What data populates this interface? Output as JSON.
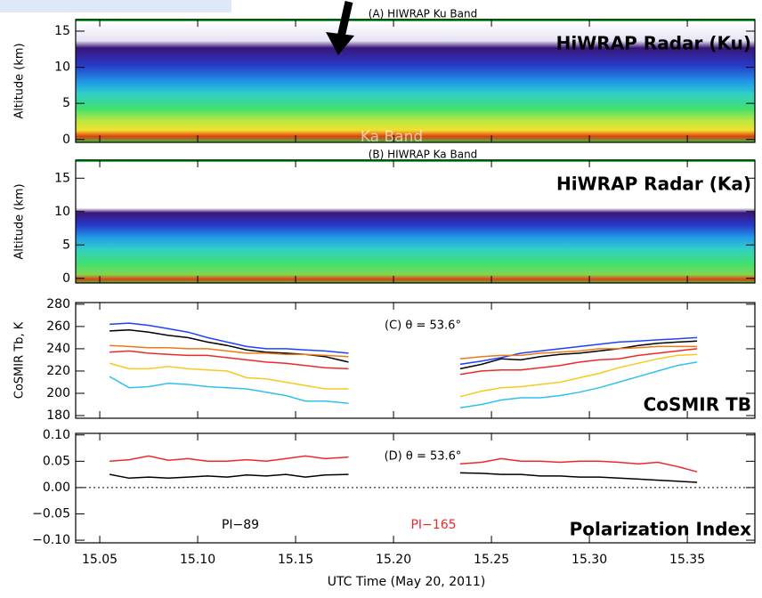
{
  "chart_data": [
    {
      "type": "radar-image",
      "title": "(A) HIWRAP Ku Band",
      "label": "HiWRAP Radar (Ku)",
      "annotation": "Ka Band",
      "ylabel": "Altitude (km)",
      "ylim": [
        -0.4,
        16.6
      ],
      "yticks": [
        0,
        5,
        10,
        15
      ]
    },
    {
      "type": "radar-image",
      "title": "(B) HIWRAP Ka Band",
      "label": "HiWRAP Radar (Ka)",
      "ylabel": "Altitude (km)",
      "ylim": [
        -0.7,
        17.7
      ],
      "yticks": [
        0,
        5,
        10,
        15
      ]
    },
    {
      "type": "line",
      "title": "(C) θ = 53.6°",
      "label": "CoSMIR TB",
      "ylabel": "CoSMIR Tb, K",
      "ylim": [
        177.6,
        281.5
      ],
      "yticks": [
        180,
        200,
        220,
        240,
        260,
        280
      ],
      "x": [
        15.055,
        15.065,
        15.075,
        15.085,
        15.095,
        15.105,
        15.115,
        15.125,
        15.135,
        15.145,
        15.155,
        15.165,
        15.177,
        15.205,
        15.234,
        15.245,
        15.255,
        15.265,
        15.275,
        15.285,
        15.295,
        15.305,
        15.315,
        15.325,
        15.335,
        15.345,
        15.355
      ],
      "series": [
        {
          "color": "#2040ff",
          "values": [
            262,
            263,
            261,
            258,
            255,
            250,
            246,
            242,
            240,
            240,
            239,
            238,
            236,
            null,
            226,
            229,
            232,
            236,
            238,
            240,
            242,
            244,
            246,
            247,
            248,
            249,
            250
          ]
        },
        {
          "color": "#000000",
          "values": [
            256,
            257,
            255,
            252,
            250,
            246,
            243,
            239,
            237,
            236,
            235,
            233,
            228,
            null,
            222,
            226,
            231,
            230,
            233,
            235,
            236,
            238,
            240,
            243,
            245,
            246,
            247
          ]
        },
        {
          "color": "#f07818",
          "values": [
            243,
            242,
            241,
            241,
            240,
            240,
            238,
            236,
            236,
            235,
            235,
            234,
            233,
            null,
            231,
            233,
            234,
            234,
            236,
            237,
            238,
            240,
            240,
            241,
            242,
            242,
            242
          ]
        },
        {
          "color": "#f02828",
          "values": [
            237,
            238,
            236,
            235,
            234,
            234,
            232,
            230,
            228,
            227,
            225,
            223,
            222,
            null,
            217,
            220,
            221,
            221,
            223,
            225,
            228,
            230,
            231,
            234,
            236,
            238,
            240
          ]
        },
        {
          "color": "#f8c820",
          "values": [
            227,
            222,
            222,
            224,
            222,
            221,
            220,
            214,
            213,
            210,
            207,
            204,
            204,
            null,
            197,
            202,
            205,
            206,
            208,
            210,
            214,
            218,
            223,
            227,
            231,
            234,
            235
          ]
        },
        {
          "color": "#30c0f0",
          "values": [
            215,
            205,
            206,
            209,
            208,
            206,
            205,
            204,
            201,
            198,
            193,
            193,
            191,
            null,
            187,
            190,
            194,
            196,
            196,
            198,
            201,
            205,
            210,
            215,
            220,
            225,
            228
          ]
        }
      ]
    },
    {
      "type": "line",
      "title": "(D) θ = 53.6°",
      "label": "Polarization Index",
      "xlabel": "UTC Time (May 20, 2011)",
      "ylim": [
        -0.105,
        0.103
      ],
      "hline": 0,
      "yticks": [
        {
          "value": 0.1,
          "label": "0.10"
        },
        {
          "value": 0.05,
          "label": "0.05"
        },
        {
          "value": 0,
          "label": "0.00"
        },
        {
          "value": -0.05,
          "label": "−0.05"
        },
        {
          "value": -0.1,
          "label": "−0.10"
        }
      ],
      "xlim": [
        15.0377,
        15.3845
      ],
      "xticks": [
        {
          "value": 15.05,
          "label": "15.05"
        },
        {
          "value": 15.1,
          "label": "15.10"
        },
        {
          "value": 15.15,
          "label": "15.15"
        },
        {
          "value": 15.2,
          "label": "15.20"
        },
        {
          "value": 15.25,
          "label": "15.25"
        },
        {
          "value": 15.3,
          "label": "15.30"
        },
        {
          "value": 15.35,
          "label": "15.35"
        }
      ],
      "x": [
        15.055,
        15.065,
        15.075,
        15.085,
        15.095,
        15.105,
        15.115,
        15.125,
        15.135,
        15.145,
        15.155,
        15.165,
        15.177,
        15.205,
        15.234,
        15.245,
        15.255,
        15.265,
        15.275,
        15.285,
        15.295,
        15.305,
        15.315,
        15.325,
        15.335,
        15.345,
        15.355
      ],
      "series": [
        {
          "name": "PI−89",
          "color": "#000000",
          "values": [
            0.025,
            0.018,
            0.02,
            0.018,
            0.02,
            0.022,
            0.02,
            0.024,
            0.022,
            0.025,
            0.02,
            0.024,
            0.025,
            null,
            0.028,
            0.027,
            0.025,
            0.025,
            0.022,
            0.022,
            0.02,
            0.02,
            0.018,
            0.016,
            0.014,
            0.012,
            0.01
          ]
        },
        {
          "name": "PI−165",
          "color": "#f02828",
          "values": [
            0.05,
            0.053,
            0.06,
            0.052,
            0.055,
            0.05,
            0.05,
            0.053,
            0.05,
            0.055,
            0.06,
            0.055,
            0.058,
            null,
            0.045,
            0.048,
            0.055,
            0.05,
            0.05,
            0.048,
            0.05,
            0.05,
            0.048,
            0.045,
            0.048,
            0.04,
            0.03
          ]
        }
      ]
    }
  ]
}
